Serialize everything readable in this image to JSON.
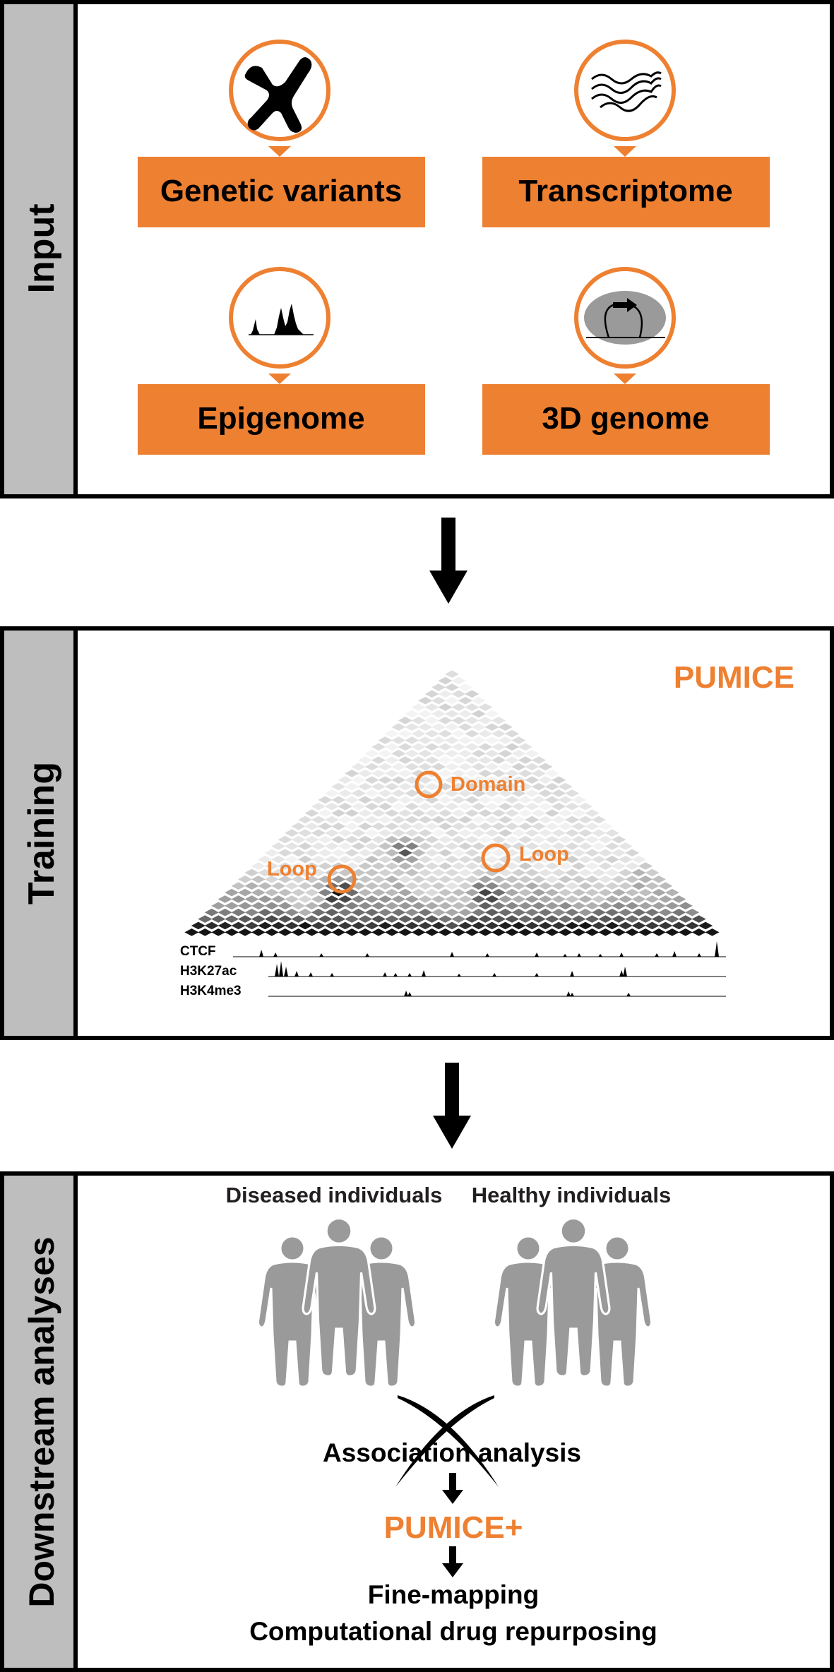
{
  "colors": {
    "accent": "#EE8031",
    "panel_border": "#000000",
    "sidebar_fill": "#BEBEBE",
    "figure_gray": "#9A9A9A"
  },
  "input": {
    "title": "Input",
    "cards": [
      {
        "label": "Genetic variants",
        "icon": "chromosome-icon"
      },
      {
        "label": "Transcriptome",
        "icon": "transcript-waves-icon"
      },
      {
        "label": "Epigenome",
        "icon": "peak-signal-icon"
      },
      {
        "label": "3D genome",
        "icon": "chromatin-loop-icon"
      }
    ]
  },
  "training": {
    "title": "Training",
    "brand": "PUMICE",
    "annotations": {
      "domain": "Domain",
      "loop_left": "Loop",
      "loop_right": "Loop"
    },
    "tracks": [
      "CTCF",
      "H3K27ac",
      "H3K4me3"
    ]
  },
  "downstream": {
    "title": "Downstream analyses",
    "group_left": "Diseased individuals",
    "group_right": "Healthy individuals",
    "association": "Association analysis",
    "brand": "PUMICE+",
    "outputs": [
      "Fine-mapping",
      "Computational drug repurposing"
    ]
  }
}
